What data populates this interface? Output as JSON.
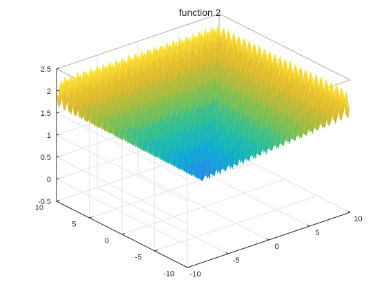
{
  "chart_data": {
    "type": "surface",
    "title": "function 2",
    "xlabel": "",
    "ylabel": "",
    "zlabel": "",
    "x_range": [
      -10,
      10
    ],
    "y_range": [
      -10,
      10
    ],
    "z_range": [
      -0.5,
      2.5
    ],
    "x_ticks": [
      "-10",
      "-5",
      "0",
      "5",
      "10"
    ],
    "y_ticks": [
      "-10",
      "-5",
      "0",
      "5",
      "10"
    ],
    "z_ticks": [
      "-0.5",
      "0",
      "0.5",
      "1",
      "1.5",
      "2",
      "2.5"
    ],
    "z_at_center": 0.6,
    "z_peak_max": 2.4,
    "z_trough_min": -0.35,
    "oscillation_period_approx": 0.785,
    "grid": true,
    "colormap": "parula",
    "colors": [
      "#3e26a8",
      "#4457f6",
      "#2a89e8",
      "#0fb0d0",
      "#2ec09a",
      "#8ac04c",
      "#dbb831",
      "#fcd932",
      "#f9fb0e"
    ]
  }
}
